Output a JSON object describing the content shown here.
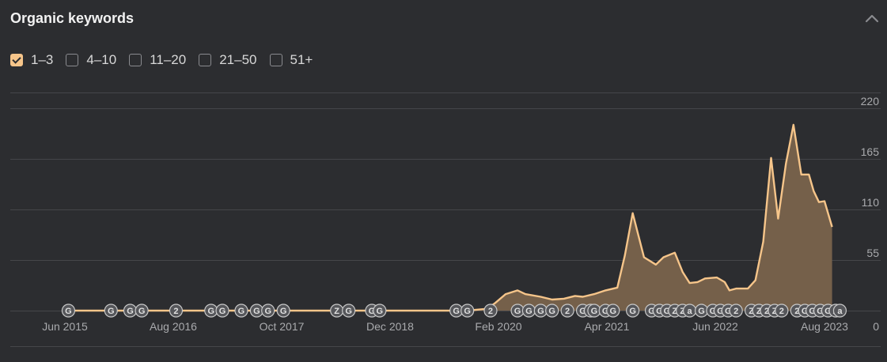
{
  "panel": {
    "title": "Organic keywords"
  },
  "filters": [
    {
      "label": "1–3",
      "checked": true
    },
    {
      "label": "4–10",
      "checked": false
    },
    {
      "label": "11–20",
      "checked": false
    },
    {
      "label": "21–50",
      "checked": false
    },
    {
      "label": "51+",
      "checked": false
    }
  ],
  "colors": {
    "line": "#f6c58a",
    "area": "#75604a",
    "grid": "#45464a",
    "marker": "#55565a"
  },
  "chart_data": {
    "type": "area",
    "x_tick_labels": [
      "Jun 2015",
      "Aug 2016",
      "Oct 2017",
      "Dec 2018",
      "Feb 2020",
      "Apr 2021",
      "Jun 2022",
      "Aug 2023"
    ],
    "y_tick_labels": [
      "220",
      "165",
      "110",
      "55",
      "0"
    ],
    "ylim": [
      0,
      220
    ],
    "grid": true,
    "series": [
      {
        "points": [
          [
            "2015-06-01",
            0
          ],
          [
            "2019-10-15",
            0
          ],
          [
            "2020-01-01",
            2
          ],
          [
            "2020-02-01",
            8
          ],
          [
            "2020-03-15",
            18
          ],
          [
            "2020-05-01",
            22
          ],
          [
            "2020-06-01",
            18
          ],
          [
            "2020-08-01",
            15
          ],
          [
            "2020-09-15",
            12
          ],
          [
            "2020-11-01",
            13
          ],
          [
            "2020-12-15",
            16
          ],
          [
            "2021-01-15",
            15
          ],
          [
            "2021-03-01",
            18
          ],
          [
            "2021-04-15",
            22
          ],
          [
            "2021-06-01",
            25
          ],
          [
            "2021-07-01",
            60
          ],
          [
            "2021-08-01",
            106
          ],
          [
            "2021-09-15",
            58
          ],
          [
            "2021-11-01",
            50
          ],
          [
            "2021-12-01",
            58
          ],
          [
            "2022-01-15",
            63
          ],
          [
            "2022-02-15",
            42
          ],
          [
            "2022-03-15",
            30
          ],
          [
            "2022-04-15",
            31
          ],
          [
            "2022-05-15",
            35
          ],
          [
            "2022-07-01",
            36
          ],
          [
            "2022-08-01",
            31
          ],
          [
            "2022-08-20",
            22
          ],
          [
            "2022-09-15",
            24
          ],
          [
            "2022-11-01",
            24
          ],
          [
            "2022-12-01",
            33
          ],
          [
            "2023-01-01",
            75
          ],
          [
            "2023-02-01",
            166
          ],
          [
            "2023-03-01",
            100
          ],
          [
            "2023-04-01",
            160
          ],
          [
            "2023-05-01",
            202
          ],
          [
            "2023-06-01",
            148
          ],
          [
            "2023-07-01",
            148
          ],
          [
            "2023-07-20",
            130
          ],
          [
            "2023-08-10",
            118
          ],
          [
            "2023-09-01",
            119
          ],
          [
            "2023-10-01",
            91
          ]
        ]
      }
    ],
    "event_markers": [
      {
        "date": "2015-06-15",
        "label": "G"
      },
      {
        "date": "2015-12-01",
        "label": "G"
      },
      {
        "date": "2016-02-15",
        "label": "G"
      },
      {
        "date": "2016-04-01",
        "label": "G"
      },
      {
        "date": "2016-08-15",
        "label": "2"
      },
      {
        "date": "2017-01-01",
        "label": "G"
      },
      {
        "date": "2017-02-15",
        "label": "G"
      },
      {
        "date": "2017-05-01",
        "label": "G"
      },
      {
        "date": "2017-07-01",
        "label": "G"
      },
      {
        "date": "2017-08-15",
        "label": "G"
      },
      {
        "date": "2017-10-15",
        "label": "G"
      },
      {
        "date": "2018-05-15",
        "label": "Z"
      },
      {
        "date": "2018-07-01",
        "label": "G"
      },
      {
        "date": "2018-10-01",
        "label": "G"
      },
      {
        "date": "2018-11-01",
        "label": "G"
      },
      {
        "date": "2019-09-01",
        "label": "G"
      },
      {
        "date": "2019-10-15",
        "label": "G"
      },
      {
        "date": "2020-01-15",
        "label": "2"
      },
      {
        "date": "2020-05-01",
        "label": "G"
      },
      {
        "date": "2020-06-15",
        "label": "G"
      },
      {
        "date": "2020-08-01",
        "label": "G"
      },
      {
        "date": "2020-09-15",
        "label": "G"
      },
      {
        "date": "2020-11-15",
        "label": "2"
      },
      {
        "date": "2021-01-15",
        "label": "G"
      },
      {
        "date": "2021-02-15",
        "label": "G"
      },
      {
        "date": "2021-03-01",
        "label": "G"
      },
      {
        "date": "2021-04-15",
        "label": "G"
      },
      {
        "date": "2021-05-15",
        "label": "G"
      },
      {
        "date": "2021-08-01",
        "label": "G"
      },
      {
        "date": "2021-10-15",
        "label": "G"
      },
      {
        "date": "2021-11-15",
        "label": "G"
      },
      {
        "date": "2021-12-15",
        "label": "G"
      },
      {
        "date": "2022-01-15",
        "label": "Z"
      },
      {
        "date": "2022-02-15",
        "label": "Z"
      },
      {
        "date": "2022-03-15",
        "label": "a"
      },
      {
        "date": "2022-05-01",
        "label": "G"
      },
      {
        "date": "2022-06-15",
        "label": "G"
      },
      {
        "date": "2022-07-15",
        "label": "G"
      },
      {
        "date": "2022-08-15",
        "label": "G"
      },
      {
        "date": "2022-09-15",
        "label": "2"
      },
      {
        "date": "2022-11-15",
        "label": "Z"
      },
      {
        "date": "2022-12-15",
        "label": "Z"
      },
      {
        "date": "2023-01-15",
        "label": "2"
      },
      {
        "date": "2023-02-15",
        "label": "Z"
      },
      {
        "date": "2023-03-15",
        "label": "2"
      },
      {
        "date": "2023-05-15",
        "label": "2"
      },
      {
        "date": "2023-06-15",
        "label": "G"
      },
      {
        "date": "2023-07-15",
        "label": "G"
      },
      {
        "date": "2023-08-15",
        "label": "G"
      },
      {
        "date": "2023-09-15",
        "label": "G"
      },
      {
        "date": "2023-10-15",
        "label": "Z"
      },
      {
        "date": "2023-11-01",
        "label": "a"
      }
    ]
  }
}
